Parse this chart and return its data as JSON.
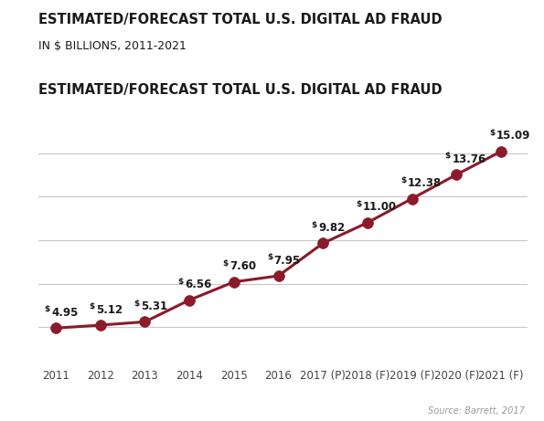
{
  "title": "ESTIMATED/FORECAST TOTAL U.S. DIGITAL AD FRAUD",
  "subtitle": "IN $ BILLIONS, 2011-2021",
  "source": "Source: Barrett, 2017.",
  "x_labels": [
    "2011",
    "2012",
    "2013",
    "2014",
    "2015",
    "2016",
    "2017 (P)",
    "2018 (F)",
    "2019 (F)",
    "2020 (F)",
    "2021 (F)"
  ],
  "values": [
    4.95,
    5.12,
    5.31,
    6.56,
    7.6,
    7.95,
    9.82,
    11.0,
    12.38,
    13.76,
    15.09
  ],
  "numbers": [
    "4.95",
    "5.12",
    "5.31",
    "6.56",
    "7.60",
    "7.95",
    "9.82",
    "11.00",
    "12.38",
    "13.76",
    "15.09"
  ],
  "line_color": "#8B1A2B",
  "marker_color": "#8B1A2B",
  "bg_color": "#FFFFFF",
  "grid_color": "#C8C8C8",
  "title_color": "#1a1a1a",
  "subtitle_color": "#1a1a1a",
  "annotation_color": "#1a1a1a",
  "source_color": "#999999",
  "ylim": [
    3.0,
    17.5
  ],
  "xlim": [
    -0.4,
    10.6
  ],
  "title_fontsize": 10.5,
  "subtitle_fontsize": 9.0,
  "annotation_fontsize": 8.5,
  "dollar_fontsize": 6.5,
  "source_fontsize": 7.0,
  "xtick_fontsize": 8.5,
  "line_width": 2.2,
  "marker_size": 8.5,
  "grid_positions": [
    5.0,
    7.5,
    10.0,
    12.5,
    15.0
  ],
  "ann_x_offsets": [
    0.0,
    0.0,
    0.0,
    0.0,
    0.0,
    0.0,
    0.0,
    0.0,
    0.0,
    0.0,
    0.0
  ],
  "ann_y_offsets": [
    0.55,
    0.55,
    0.55,
    0.55,
    0.55,
    0.55,
    0.55,
    0.55,
    0.55,
    0.55,
    0.55
  ]
}
